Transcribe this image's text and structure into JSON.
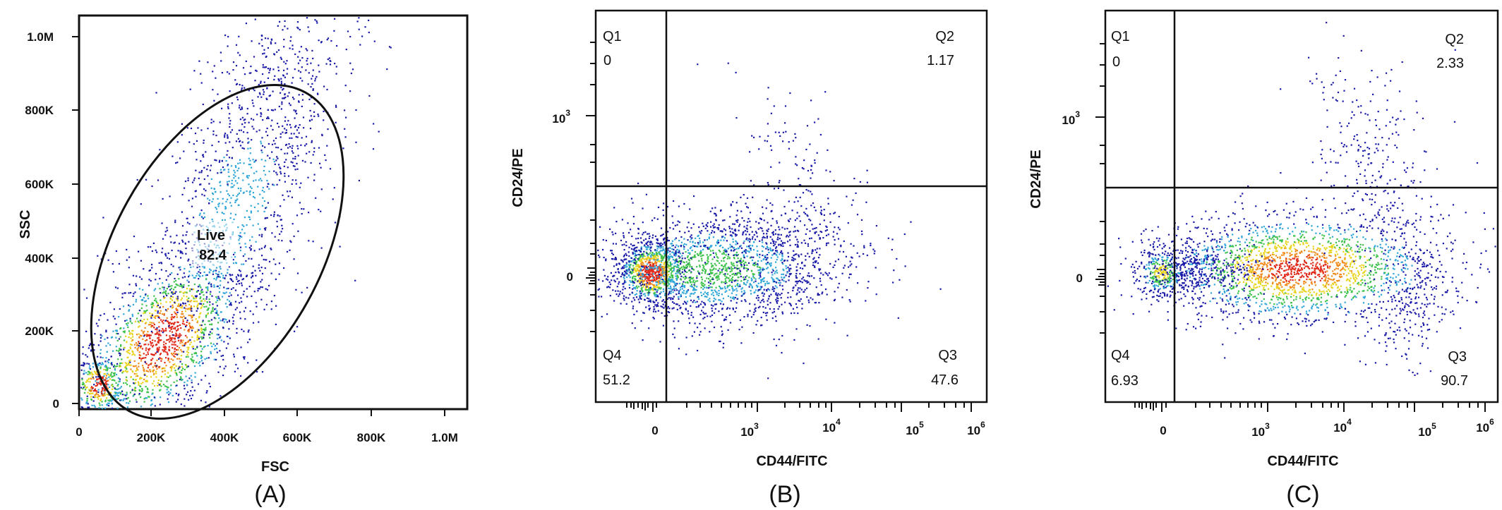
{
  "chart_data": [
    {
      "type": "scatter",
      "panel_label": "(A)",
      "xlabel": "FSC",
      "ylabel": "SSC",
      "x_ticks": [
        "0",
        "200K",
        "400K",
        "600K",
        "800K",
        "1.0M"
      ],
      "y_ticks": [
        "0",
        "200K",
        "400K",
        "600K",
        "800K",
        "1.0M"
      ],
      "xlim": [
        0,
        1050000
      ],
      "ylim": [
        0,
        1050000
      ],
      "gate": {
        "name": "Live",
        "value": "82.4"
      },
      "colors": {
        "sparse": "#1a1aa8",
        "mid": "#2fa6d8",
        "dense": "#e02818"
      }
    },
    {
      "type": "scatter",
      "panel_label": "(B)",
      "xlabel": "CD44/FITC",
      "ylabel": "CD24/PE",
      "x_ticks": [
        {
          "base": "0",
          "exp": ""
        },
        {
          "base": "10",
          "exp": "3"
        },
        {
          "base": "10",
          "exp": "4"
        },
        {
          "base": "10",
          "exp": "5"
        },
        {
          "base": "10",
          "exp": "6"
        }
      ],
      "y_ticks": [
        {
          "base": "0",
          "exp": ""
        },
        {
          "base": "10",
          "exp": "3"
        }
      ],
      "quadrants": [
        {
          "name": "Q1",
          "value": "0"
        },
        {
          "name": "Q2",
          "value": "1.17"
        },
        {
          "name": "Q3",
          "value": "47.6"
        },
        {
          "name": "Q4",
          "value": "51.2"
        }
      ]
    },
    {
      "type": "scatter",
      "panel_label": "(C)",
      "xlabel": "CD44/FITC",
      "ylabel": "CD24/PE",
      "x_ticks": [
        {
          "base": "0",
          "exp": ""
        },
        {
          "base": "10",
          "exp": "3"
        },
        {
          "base": "10",
          "exp": "4"
        },
        {
          "base": "10",
          "exp": "5"
        },
        {
          "base": "10",
          "exp": "6"
        }
      ],
      "y_ticks": [
        {
          "base": "0",
          "exp": ""
        },
        {
          "base": "10",
          "exp": "3"
        }
      ],
      "quadrants": [
        {
          "name": "Q1",
          "value": "0"
        },
        {
          "name": "Q2",
          "value": "2.33"
        },
        {
          "name": "Q3",
          "value": "90.7"
        },
        {
          "name": "Q4",
          "value": "6.93"
        }
      ]
    }
  ]
}
